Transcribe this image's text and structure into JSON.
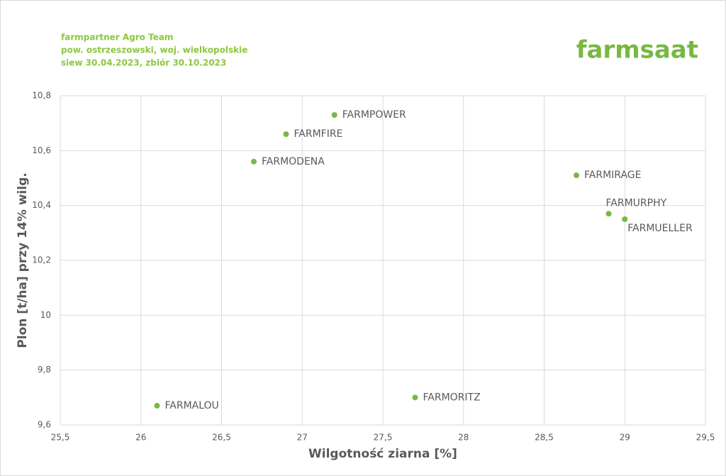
{
  "chart_data": {
    "type": "scatter",
    "header": [
      "farmpartner Agro Team",
      "pow. ostrzeszowski, woj. wielkopolskie",
      "siew 30.04.2023, zbiór 30.10.2023"
    ],
    "logo": "farmsaat",
    "x_label": "Wilgotność ziarna [%]",
    "y_label": "Plon [t/ha] przy 14% wilg.",
    "labels": [
      "FARMPOWER",
      "FARMFIRE",
      "FARMODENA",
      "FARMIRAGE",
      "FARMURPHY",
      "FARMUELLER",
      "FARMALOU",
      "FARMORITZ"
    ],
    "x": [
      27.2,
      26.9,
      26.7,
      28.7,
      28.9,
      29.0,
      26.1,
      27.7
    ],
    "values": [
      10.73,
      10.66,
      10.56,
      10.51,
      10.37,
      10.35,
      9.67,
      9.7
    ],
    "color": "#78b843",
    "xlim": [
      25.5,
      29.5
    ],
    "xticks": [
      {
        "value": 25.5,
        "label": "25,5"
      },
      26,
      {
        "value": 26.5,
        "label": "26,5"
      },
      27,
      {
        "value": 27.5,
        "label": "27,5"
      },
      28,
      {
        "value": 28.5,
        "label": "28,5"
      },
      29,
      {
        "value": 29.5,
        "label": "29,5"
      }
    ],
    "ylim": [
      9.6,
      10.8
    ],
    "yticks": [
      {
        "value": 9.6,
        "label": "9,6"
      },
      {
        "value": 9.8,
        "label": "9,8"
      },
      10,
      {
        "value": 10.2,
        "label": "10,2"
      },
      {
        "value": 10.4,
        "label": "10,4"
      },
      {
        "value": 10.6,
        "label": "10,6"
      },
      {
        "value": 10.8,
        "label": "10,8"
      }
    ],
    "grid": true
  }
}
